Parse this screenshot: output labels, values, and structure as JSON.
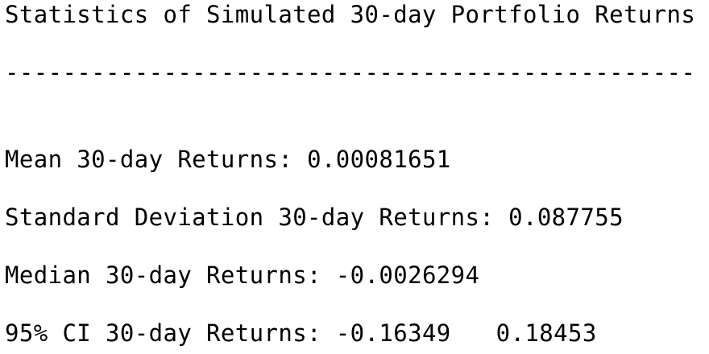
{
  "output": {
    "title": "Statistics of Simulated 30-day Portfolio Returns",
    "divider": "------------------------------------------------",
    "stats": {
      "mean_label": "Mean 30-day Returns: ",
      "mean_value": "0.00081651",
      "std_label": "Standard Deviation 30-day Returns: ",
      "std_value": "0.087755",
      "median_label": "Median 30-day Returns: ",
      "median_value": "-0.0026294",
      "ci_label": "95% CI 30-day Returns: ",
      "ci_lower": "-0.16349",
      "ci_upper": "0.18453"
    }
  }
}
